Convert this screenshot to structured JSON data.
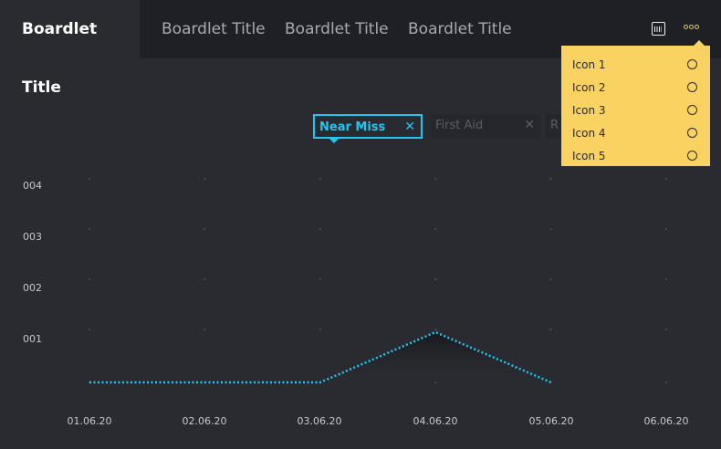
{
  "header": {
    "tabs": [
      {
        "label": "Boardlet Title",
        "active": true
      },
      {
        "label": "Boardlet Title"
      },
      {
        "label": "Boardlet Title"
      },
      {
        "label": "Boardlet Title"
      }
    ],
    "calendar_icon": "calendar-icon",
    "more_icon": "more-dots-icon"
  },
  "menu": {
    "items": [
      {
        "label": "Icon 1",
        "icon": "circle-icon"
      },
      {
        "label": "Icon 2",
        "icon": "circle-icon"
      },
      {
        "label": "Icon 3",
        "icon": "circle-icon"
      },
      {
        "label": "Icon 4",
        "icon": "circle-icon"
      },
      {
        "label": "Icon 5",
        "icon": "circle-icon"
      }
    ]
  },
  "filters": [
    {
      "label": "Near Miss",
      "active": true,
      "close": "✕"
    },
    {
      "label": "First Aid",
      "active": false,
      "close": "✕"
    },
    {
      "label": "R",
      "active": false
    }
  ],
  "colors": {
    "accent": "#22c6f0",
    "menu_bg": "#f9d262",
    "background": "#2a2b30",
    "header_bg": "#1f2025"
  },
  "chart_data": {
    "type": "line",
    "categories": [
      "01.06.20",
      "02.06.20",
      "03.06.20",
      "04.06.20",
      "05.06.20",
      "06.06.20"
    ],
    "y_tick_labels": [
      "001",
      "002",
      "003",
      "004"
    ],
    "ylim": [
      0,
      4
    ],
    "series": [
      {
        "name": "Near Miss",
        "values": [
          0,
          0,
          0,
          1,
          0,
          null
        ]
      }
    ],
    "grid": "dots",
    "line_style": "dotted"
  }
}
